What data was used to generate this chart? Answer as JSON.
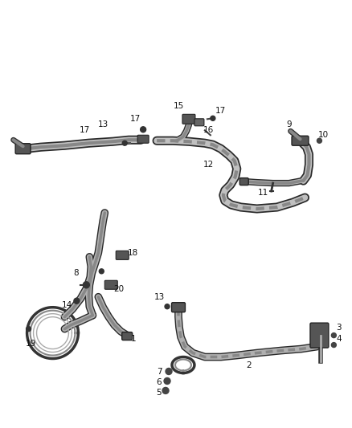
{
  "bg_color": "#ffffff",
  "label_color": "#111111",
  "figsize": [
    4.38,
    5.33
  ],
  "dpi": 100,
  "hose_dark": "#3a3a3a",
  "hose_mid": "#888888",
  "hose_light": "#cccccc",
  "fitting_dark": "#2a2a2a",
  "fitting_mid": "#666666"
}
